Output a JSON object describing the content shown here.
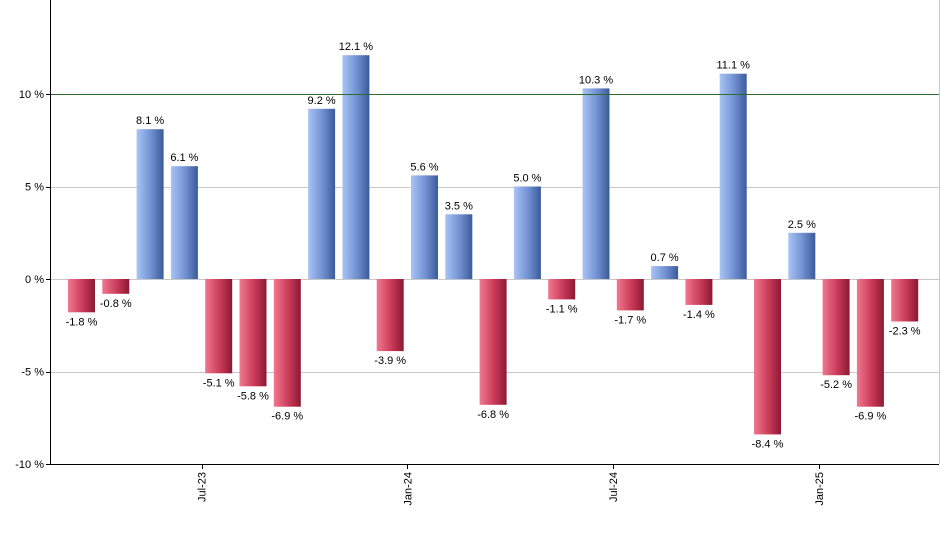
{
  "chart_data": {
    "type": "bar",
    "title": "",
    "xlabel": "",
    "ylabel": "",
    "ylim": [
      -10,
      13
    ],
    "y_ticks": [
      {
        "value": 10,
        "label": "10 %"
      },
      {
        "value": 5,
        "label": "5 %"
      },
      {
        "value": 0,
        "label": "0 %"
      },
      {
        "value": -5,
        "label": "-5 %"
      },
      {
        "value": -10,
        "label": "-10 %"
      }
    ],
    "x_ticks": [
      {
        "index": 3.5,
        "label": "Jul-23"
      },
      {
        "index": 9.5,
        "label": "Jan-24"
      },
      {
        "index": 15.5,
        "label": "Jul-24"
      },
      {
        "index": 21.5,
        "label": "Jan-25"
      }
    ],
    "reference_line": {
      "value": 10,
      "color": "#2e6b2e"
    },
    "grid": true,
    "colors": {
      "positive_light": "#a9c4f5",
      "positive_dark": "#3a5a9a",
      "negative_light": "#f07890",
      "negative_dark": "#8a1a32",
      "gridline": "#c8c8c8",
      "axis": "#000000"
    },
    "values": [
      -1.8,
      -0.8,
      8.1,
      6.1,
      -5.1,
      -5.8,
      -6.9,
      9.2,
      12.1,
      -3.9,
      5.6,
      3.5,
      -6.8,
      5.0,
      -1.1,
      10.3,
      -1.7,
      0.7,
      -1.4,
      11.1,
      -8.4,
      2.5,
      -5.2,
      -6.9,
      -2.3
    ],
    "labels": [
      "-1.8 %",
      "-0.8 %",
      "8.1 %",
      "6.1 %",
      "-5.1 %",
      "-5.8 %",
      "-6.9 %",
      "9.2 %",
      "12.1 %",
      "-3.9 %",
      "5.6 %",
      "3.5 %",
      "-6.8 %",
      "5.0 %",
      "-1.1 %",
      "10.3 %",
      "-1.7 %",
      "0.7 %",
      "-1.4 %",
      "11.1 %",
      "-8.4 %",
      "2.5 %",
      "-5.2 %",
      "-6.9 %",
      "-2.3 %"
    ]
  }
}
